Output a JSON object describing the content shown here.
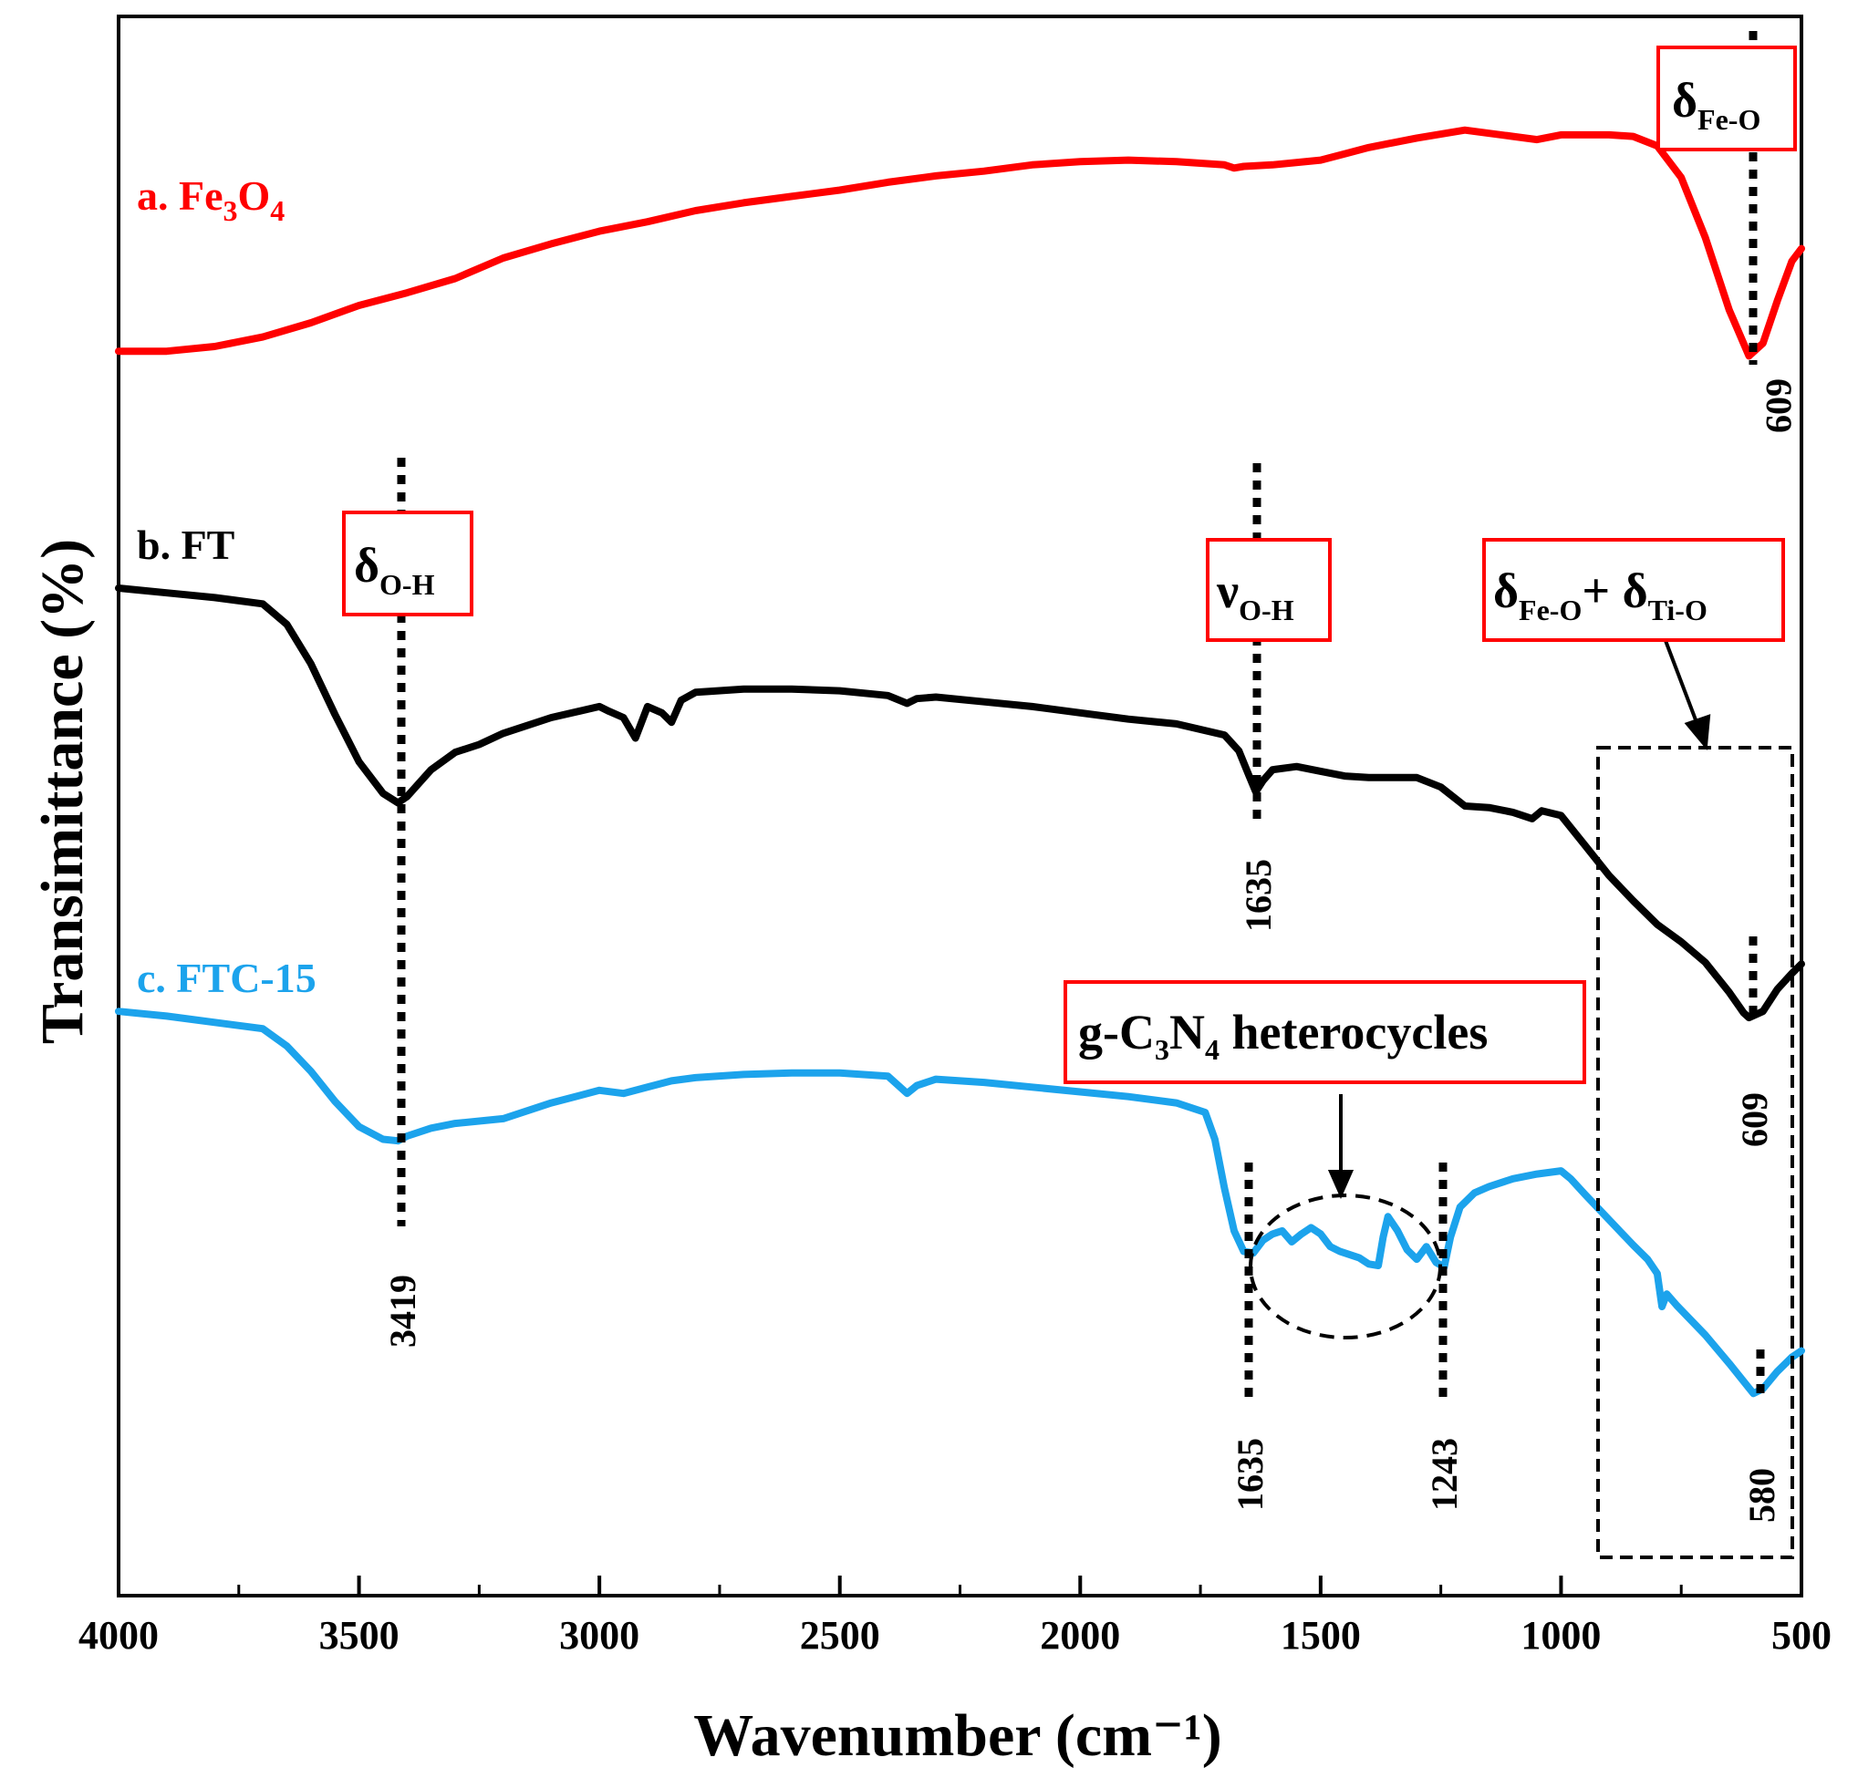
{
  "chart_data": {
    "type": "line",
    "xlabel": "Wavenumber (cm⁻¹)",
    "ylabel": "Transimittance (%)",
    "xlim": [
      4000,
      500
    ],
    "x_ticks": [
      4000,
      3500,
      3000,
      2500,
      2000,
      1500,
      1000,
      500
    ],
    "y_range": [
      0,
      100
    ],
    "y_units_note": "arbitrary, offset curves",
    "series": [
      {
        "id": "fe3o4",
        "label_prefix": "a. Fe",
        "label_sub1": "3",
        "label_mid": "O",
        "label_sub2": "4",
        "color": "#ff0000",
        "points": [
          [
            4000,
            78.8
          ],
          [
            3900,
            78.8
          ],
          [
            3800,
            79.1
          ],
          [
            3700,
            79.7
          ],
          [
            3600,
            80.6
          ],
          [
            3500,
            81.7
          ],
          [
            3400,
            82.5
          ],
          [
            3300,
            83.4
          ],
          [
            3200,
            84.7
          ],
          [
            3100,
            85.6
          ],
          [
            3000,
            86.4
          ],
          [
            2900,
            87.0
          ],
          [
            2800,
            87.7
          ],
          [
            2700,
            88.2
          ],
          [
            2600,
            88.6
          ],
          [
            2500,
            89.0
          ],
          [
            2400,
            89.5
          ],
          [
            2300,
            89.9
          ],
          [
            2200,
            90.2
          ],
          [
            2100,
            90.6
          ],
          [
            2000,
            90.8
          ],
          [
            1900,
            90.9
          ],
          [
            1800,
            90.8
          ],
          [
            1700,
            90.6
          ],
          [
            1680,
            90.4
          ],
          [
            1660,
            90.5
          ],
          [
            1600,
            90.6
          ],
          [
            1500,
            90.9
          ],
          [
            1450,
            91.3
          ],
          [
            1400,
            91.7
          ],
          [
            1300,
            92.3
          ],
          [
            1200,
            92.8
          ],
          [
            1100,
            92.4
          ],
          [
            1050,
            92.2
          ],
          [
            1000,
            92.5
          ],
          [
            900,
            92.5
          ],
          [
            850,
            92.4
          ],
          [
            800,
            91.8
          ],
          [
            750,
            89.8
          ],
          [
            700,
            86.0
          ],
          [
            650,
            81.4
          ],
          [
            609,
            78.5
          ],
          [
            580,
            79.3
          ],
          [
            550,
            82.0
          ],
          [
            520,
            84.5
          ],
          [
            500,
            85.3
          ]
        ]
      },
      {
        "id": "ft",
        "label": "b. FT",
        "color": "#000000",
        "points": [
          [
            4000,
            63.8
          ],
          [
            3900,
            63.5
          ],
          [
            3800,
            63.2
          ],
          [
            3700,
            62.8
          ],
          [
            3650,
            61.5
          ],
          [
            3600,
            59.0
          ],
          [
            3550,
            55.8
          ],
          [
            3500,
            52.8
          ],
          [
            3450,
            50.8
          ],
          [
            3419,
            50.2
          ],
          [
            3400,
            50.6
          ],
          [
            3350,
            52.3
          ],
          [
            3300,
            53.4
          ],
          [
            3250,
            53.9
          ],
          [
            3200,
            54.6
          ],
          [
            3100,
            55.6
          ],
          [
            3000,
            56.3
          ],
          [
            2980,
            56.0
          ],
          [
            2950,
            55.6
          ],
          [
            2925,
            54.3
          ],
          [
            2900,
            56.3
          ],
          [
            2870,
            55.9
          ],
          [
            2850,
            55.3
          ],
          [
            2830,
            56.7
          ],
          [
            2800,
            57.2
          ],
          [
            2700,
            57.4
          ],
          [
            2600,
            57.4
          ],
          [
            2500,
            57.3
          ],
          [
            2400,
            57.0
          ],
          [
            2360,
            56.5
          ],
          [
            2340,
            56.8
          ],
          [
            2300,
            56.9
          ],
          [
            2200,
            56.6
          ],
          [
            2100,
            56.3
          ],
          [
            2000,
            55.9
          ],
          [
            1900,
            55.5
          ],
          [
            1800,
            55.2
          ],
          [
            1700,
            54.5
          ],
          [
            1670,
            53.5
          ],
          [
            1650,
            52.0
          ],
          [
            1635,
            50.9
          ],
          [
            1620,
            51.6
          ],
          [
            1600,
            52.3
          ],
          [
            1550,
            52.5
          ],
          [
            1500,
            52.2
          ],
          [
            1450,
            51.9
          ],
          [
            1400,
            51.8
          ],
          [
            1300,
            51.8
          ],
          [
            1250,
            51.2
          ],
          [
            1200,
            50.0
          ],
          [
            1150,
            49.9
          ],
          [
            1100,
            49.6
          ],
          [
            1060,
            49.2
          ],
          [
            1040,
            49.7
          ],
          [
            1000,
            49.4
          ],
          [
            950,
            47.5
          ],
          [
            900,
            45.6
          ],
          [
            850,
            44.0
          ],
          [
            800,
            42.5
          ],
          [
            750,
            41.4
          ],
          [
            700,
            40.1
          ],
          [
            650,
            38.2
          ],
          [
            620,
            36.9
          ],
          [
            609,
            36.6
          ],
          [
            580,
            37.0
          ],
          [
            550,
            38.4
          ],
          [
            520,
            39.4
          ],
          [
            500,
            40.0
          ]
        ]
      },
      {
        "id": "ftc15",
        "label": "c. FTC-15",
        "color": "#1ca3ec",
        "points": [
          [
            4000,
            37.0
          ],
          [
            3900,
            36.7
          ],
          [
            3800,
            36.3
          ],
          [
            3700,
            35.9
          ],
          [
            3650,
            34.8
          ],
          [
            3600,
            33.2
          ],
          [
            3550,
            31.3
          ],
          [
            3500,
            29.7
          ],
          [
            3450,
            28.9
          ],
          [
            3419,
            28.8
          ],
          [
            3400,
            29.1
          ],
          [
            3350,
            29.6
          ],
          [
            3300,
            29.9
          ],
          [
            3200,
            30.2
          ],
          [
            3100,
            31.2
          ],
          [
            3000,
            32.0
          ],
          [
            2950,
            31.8
          ],
          [
            2900,
            32.2
          ],
          [
            2850,
            32.6
          ],
          [
            2800,
            32.8
          ],
          [
            2700,
            33.0
          ],
          [
            2600,
            33.1
          ],
          [
            2500,
            33.1
          ],
          [
            2400,
            32.9
          ],
          [
            2360,
            31.8
          ],
          [
            2340,
            32.3
          ],
          [
            2300,
            32.7
          ],
          [
            2200,
            32.5
          ],
          [
            2100,
            32.2
          ],
          [
            2000,
            31.9
          ],
          [
            1900,
            31.6
          ],
          [
            1800,
            31.2
          ],
          [
            1740,
            30.6
          ],
          [
            1720,
            28.9
          ],
          [
            1700,
            25.8
          ],
          [
            1680,
            23.1
          ],
          [
            1660,
            21.8
          ],
          [
            1640,
            21.7
          ],
          [
            1620,
            22.5
          ],
          [
            1600,
            22.9
          ],
          [
            1580,
            23.1
          ],
          [
            1560,
            22.4
          ],
          [
            1540,
            22.9
          ],
          [
            1520,
            23.3
          ],
          [
            1500,
            22.9
          ],
          [
            1480,
            22.1
          ],
          [
            1460,
            21.8
          ],
          [
            1440,
            21.6
          ],
          [
            1420,
            21.4
          ],
          [
            1400,
            21.0
          ],
          [
            1380,
            20.9
          ],
          [
            1370,
            22.7
          ],
          [
            1360,
            24.0
          ],
          [
            1340,
            23.1
          ],
          [
            1320,
            21.9
          ],
          [
            1300,
            21.3
          ],
          [
            1280,
            22.1
          ],
          [
            1260,
            21.1
          ],
          [
            1243,
            20.8
          ],
          [
            1230,
            22.7
          ],
          [
            1210,
            24.6
          ],
          [
            1180,
            25.5
          ],
          [
            1150,
            25.9
          ],
          [
            1100,
            26.4
          ],
          [
            1050,
            26.7
          ],
          [
            1000,
            26.9
          ],
          [
            980,
            26.4
          ],
          [
            950,
            25.4
          ],
          [
            900,
            23.8
          ],
          [
            850,
            22.2
          ],
          [
            820,
            21.3
          ],
          [
            800,
            20.4
          ],
          [
            790,
            18.3
          ],
          [
            780,
            19.1
          ],
          [
            760,
            18.4
          ],
          [
            700,
            16.5
          ],
          [
            650,
            14.7
          ],
          [
            600,
            12.8
          ],
          [
            580,
            13.1
          ],
          [
            550,
            14.2
          ],
          [
            520,
            15.1
          ],
          [
            500,
            15.5
          ]
        ]
      }
    ],
    "peak_labels": [
      {
        "id": "p609a",
        "text": "609",
        "x": 609
      },
      {
        "id": "p1635b",
        "text": "1635",
        "x": 1635
      },
      {
        "id": "p609b",
        "text": "609",
        "x": 609
      },
      {
        "id": "p3419",
        "text": "3419",
        "x": 3419
      },
      {
        "id": "p1635c",
        "text": "1635",
        "x": 1635
      },
      {
        "id": "p1243",
        "text": "1243",
        "x": 1243
      },
      {
        "id": "p580",
        "text": "580",
        "x": 580
      }
    ],
    "annotations": {
      "fe_o": {
        "sym": "δ",
        "sub": "Fe-O"
      },
      "oh_bend": {
        "sym": "δ",
        "sub": "O-H"
      },
      "oh_stretch": {
        "sym": "ν",
        "sub": "O-H"
      },
      "fe_ti": {
        "sym1": "δ",
        "sub1": "Fe-O",
        "plus": "+ ",
        "sym2": "δ",
        "sub2": "Ti-O"
      },
      "gcn": {
        "pre": "g-C",
        "sub1": "3",
        "mid": "N",
        "sub2": "4",
        "post": " heterocycles"
      }
    }
  }
}
